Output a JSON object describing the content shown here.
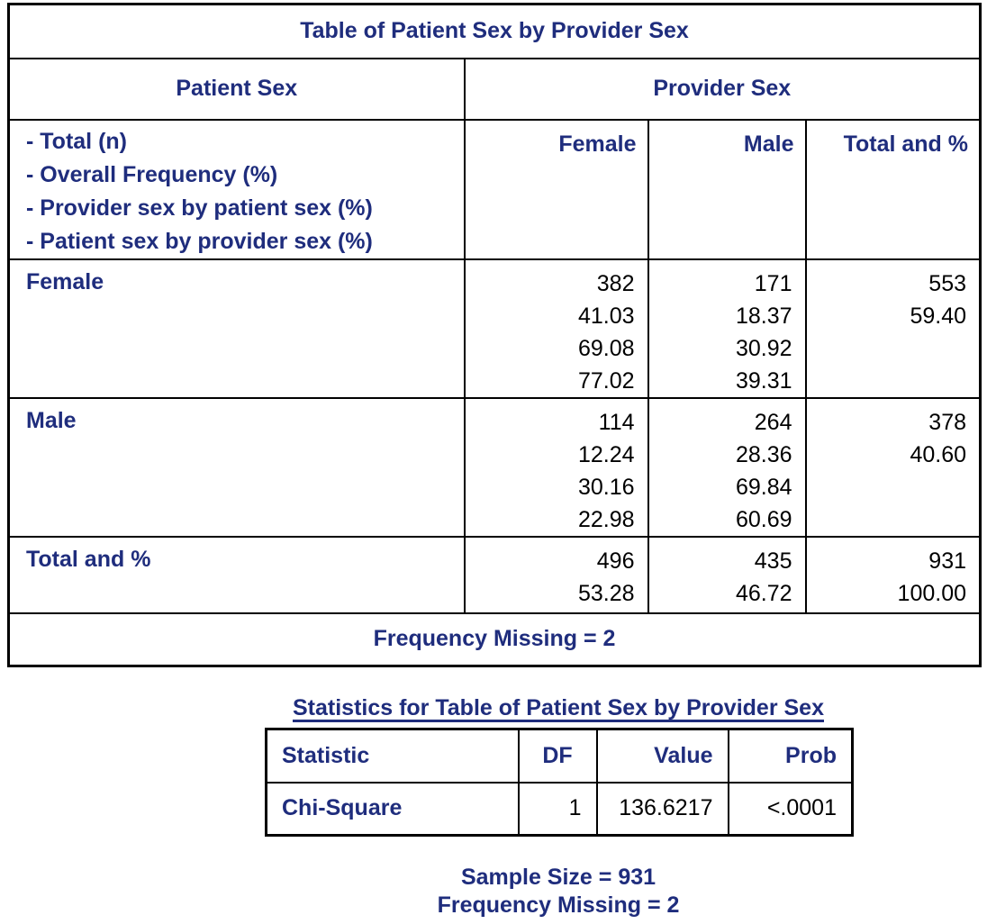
{
  "colors": {
    "heading": "#1f2d7d",
    "data": "#000000",
    "border": "#000000"
  },
  "crosstab": {
    "title": "Table of Patient Sex by Provider Sex",
    "row_dimension": "Patient Sex",
    "col_dimension": "Provider Sex",
    "stub_legend": [
      "- Total (n)",
      "- Overall Frequency (%)",
      "- Provider sex by patient sex (%)",
      "- Patient sex by provider sex (%)"
    ],
    "col_headers": [
      "Female",
      "Male",
      "Total and %"
    ],
    "rows": [
      {
        "label": "Female",
        "female": [
          "382",
          "41.03",
          "69.08",
          "77.02"
        ],
        "male": [
          "171",
          "18.37",
          "30.92",
          "39.31"
        ],
        "total": [
          "553",
          "59.40"
        ]
      },
      {
        "label": "Male",
        "female": [
          "114",
          "12.24",
          "30.16",
          "22.98"
        ],
        "male": [
          "264",
          "28.36",
          "69.84",
          "60.69"
        ],
        "total": [
          "378",
          "40.60"
        ]
      },
      {
        "label": "Total and %",
        "female": [
          "496",
          "53.28"
        ],
        "male": [
          "435",
          "46.72"
        ],
        "total": [
          "931",
          "100.00"
        ]
      }
    ],
    "footer": "Frequency Missing = 2"
  },
  "statistics": {
    "title": "Statistics for Table of Patient Sex by Provider Sex",
    "col_headers": [
      "Statistic",
      "DF",
      "Value",
      "Prob"
    ],
    "rows": [
      {
        "statistic": "Chi-Square",
        "df": "1",
        "value": "136.6217",
        "prob": "<.0001"
      }
    ]
  },
  "summary": {
    "sample_size": "Sample Size = 931",
    "frequency_missing": "Frequency Missing = 2"
  }
}
